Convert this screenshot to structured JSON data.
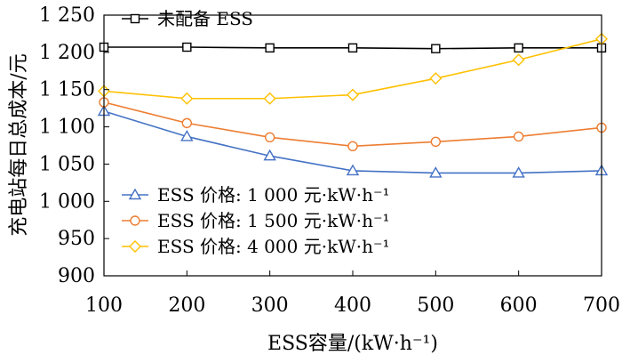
{
  "chart_data": {
    "type": "line",
    "xlabel": "ESS容量/(kW·h⁻¹)",
    "ylabel": "充电站每日总成本/元",
    "x": [
      100,
      200,
      300,
      400,
      500,
      600,
      700
    ],
    "xlim": [
      100,
      700
    ],
    "ylim": [
      900,
      1250
    ],
    "xticks": [
      "100",
      "200",
      "300",
      "400",
      "500",
      "600",
      "700"
    ],
    "yticks": [
      {
        "value": 900,
        "label": "900"
      },
      {
        "value": 950,
        "label": "950"
      },
      {
        "value": 1000,
        "label": "1 000"
      },
      {
        "value": 1050,
        "label": "1 050"
      },
      {
        "value": 1100,
        "label": "1 100"
      },
      {
        "value": 1150,
        "label": "1 150"
      },
      {
        "value": 1200,
        "label": "1 200"
      },
      {
        "value": 1250,
        "label": "1 250"
      }
    ],
    "grid": false,
    "series": [
      {
        "name": "未配备 ESS",
        "marker": "square",
        "color": "#000000",
        "values": [
          1207,
          1207,
          1206,
          1206,
          1205,
          1206,
          1206
        ]
      },
      {
        "name": "ESS 价格: 1 000 元·kW·h⁻¹",
        "marker": "triangle",
        "color": "#4472c4",
        "values": [
          1121,
          1087,
          1061,
          1041,
          1038,
          1038,
          1041
        ]
      },
      {
        "name": "ESS 价格: 1 500 元·kW·h⁻¹",
        "marker": "circle",
        "color": "#ed7d31",
        "values": [
          1133,
          1105,
          1086,
          1074,
          1080,
          1087,
          1099
        ]
      },
      {
        "name": "ESS 价格: 4 000 元·kW·h⁻¹",
        "marker": "diamond",
        "color": "#ffc000",
        "values": [
          1148,
          1138,
          1138,
          1143,
          1165,
          1190,
          1218
        ]
      }
    ],
    "legends": [
      {
        "placement": "top-left",
        "series_index": [
          0
        ]
      },
      {
        "placement": "bottom-left",
        "series_index": [
          1,
          2,
          3
        ]
      }
    ]
  }
}
